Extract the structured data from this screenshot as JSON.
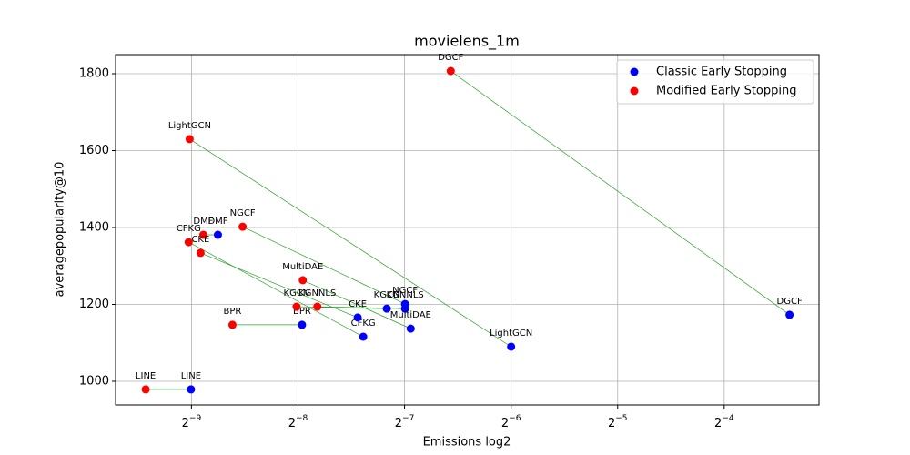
{
  "chart_data": {
    "type": "scatter",
    "title": "movielens_1m",
    "x_label": "Emissions log2",
    "y_label": "averagepopularity@10",
    "x_scale": "log2",
    "grid": true,
    "legend": "upper right",
    "connector_color": "#2ca02c",
    "xlim": [
      0.001192,
      0.1158
    ],
    "ylim": [
      938.5,
      1849.7
    ],
    "xticks": [
      {
        "value": 0.001953125,
        "label": "2−9"
      },
      {
        "value": 0.00390625,
        "label": "2−8"
      },
      {
        "value": 0.0078125,
        "label": "2−7"
      },
      {
        "value": 0.015625,
        "label": "2−6"
      },
      {
        "value": 0.03125,
        "label": "2−5"
      },
      {
        "value": 0.0625,
        "label": "2−4"
      }
    ],
    "yticks": [
      1000,
      1200,
      1400,
      1600,
      1800
    ],
    "series": [
      {
        "name": "Classic Early Stopping",
        "color": "#0000ff",
        "labels": [
          "LINE",
          "BPR",
          "DMF",
          "CFKG",
          "CKE",
          "KGCN",
          "KGNNLS",
          "NGCF",
          "MultiDAE",
          "LightGCN",
          "DGCF"
        ],
        "x": [
          0.001947,
          0.00401,
          0.00232,
          0.00597,
          0.00576,
          0.00696,
          0.00784,
          0.00784,
          0.00813,
          0.015625,
          0.0956
        ],
        "values": [
          979,
          1147,
          1381,
          1116,
          1166,
          1189,
          1189,
          1201,
          1137,
          1090,
          1173
        ]
      },
      {
        "name": "Modified Early Stopping",
        "color": "#ff0000",
        "labels": [
          "LINE",
          "BPR",
          "DMF",
          "CFKG",
          "CKE",
          "KGCN",
          "KGNNLS",
          "NGCF",
          "MultiDAE",
          "LightGCN",
          "DGCF"
        ],
        "x": [
          0.00145,
          0.00255,
          0.00211,
          0.001918,
          0.002072,
          0.00387,
          0.00443,
          0.002724,
          0.00403,
          0.00193,
          0.01055
        ],
        "values": [
          979,
          1147,
          1381,
          1362,
          1334,
          1194,
          1194,
          1402,
          1263,
          1630,
          1807
        ]
      }
    ]
  }
}
